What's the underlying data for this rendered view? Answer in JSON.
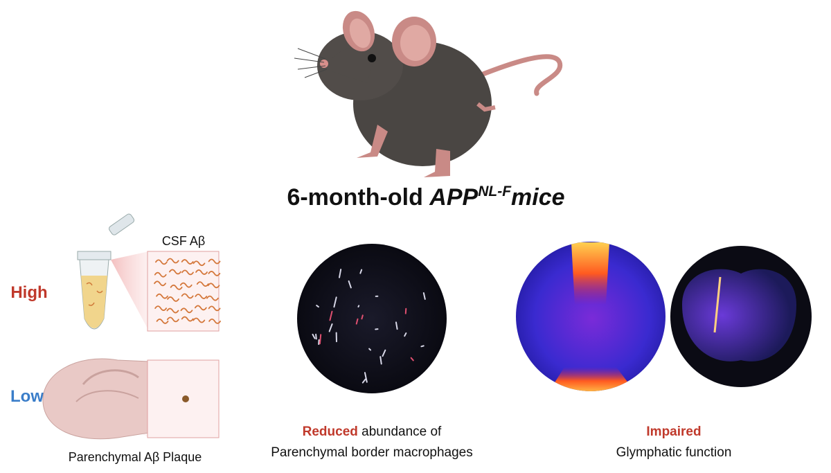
{
  "title": {
    "prefix": "6-month-old",
    "gene": "APP",
    "superscript": "NL-F",
    "suffix": "mice"
  },
  "left_panel": {
    "csf_label": "CSF Aβ",
    "high_label": "High",
    "low_label": "Low",
    "plaque_label": "Parenchymal Aβ Plaque"
  },
  "middle_panel": {
    "emphasis": "Reduced",
    "caption_line1": "abundance of",
    "caption_line2": "Parenchymal border macrophages"
  },
  "right_panel": {
    "emphasis": "Impaired",
    "caption_line2": "Glymphatic function"
  }
}
